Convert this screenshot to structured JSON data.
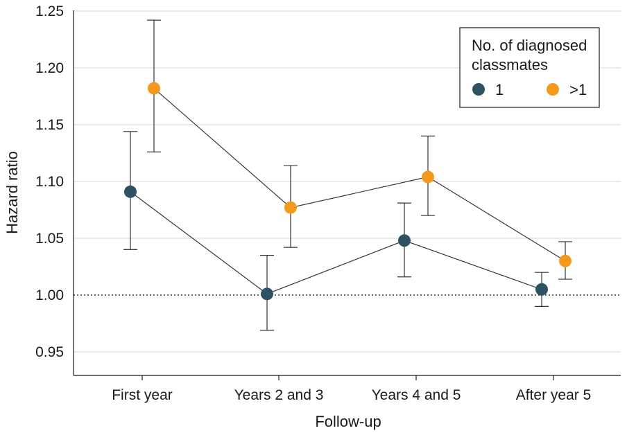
{
  "chart_data": {
    "type": "scatter",
    "xlabel": "Follow-up",
    "ylabel": "Hazard ratio",
    "categories": [
      "First year",
      "Years 2 and 3",
      "Years 4 and 5",
      "After year 5"
    ],
    "ylim": [
      0.93,
      1.25
    ],
    "yticks": [
      "0.95",
      "1.00",
      "1.05",
      "1.10",
      "1.15",
      "1.20",
      "1.25"
    ],
    "grid": true,
    "reference_line": 1.0,
    "legend": {
      "title_line1": "No. of diagnosed",
      "title_line2": "classmates",
      "placement": "top-right"
    },
    "series": [
      {
        "name": "1",
        "color": "#2d5362",
        "values": [
          1.091,
          1.001,
          1.048,
          1.005
        ],
        "lower": [
          1.04,
          0.969,
          1.016,
          0.99
        ],
        "upper": [
          1.144,
          1.035,
          1.081,
          1.02
        ]
      },
      {
        "name": ">1",
        "color": "#f39a1d",
        "values": [
          1.182,
          1.077,
          1.104,
          1.03
        ],
        "lower": [
          1.126,
          1.042,
          1.07,
          1.014
        ],
        "upper": [
          1.242,
          1.114,
          1.14,
          1.047
        ]
      }
    ]
  }
}
